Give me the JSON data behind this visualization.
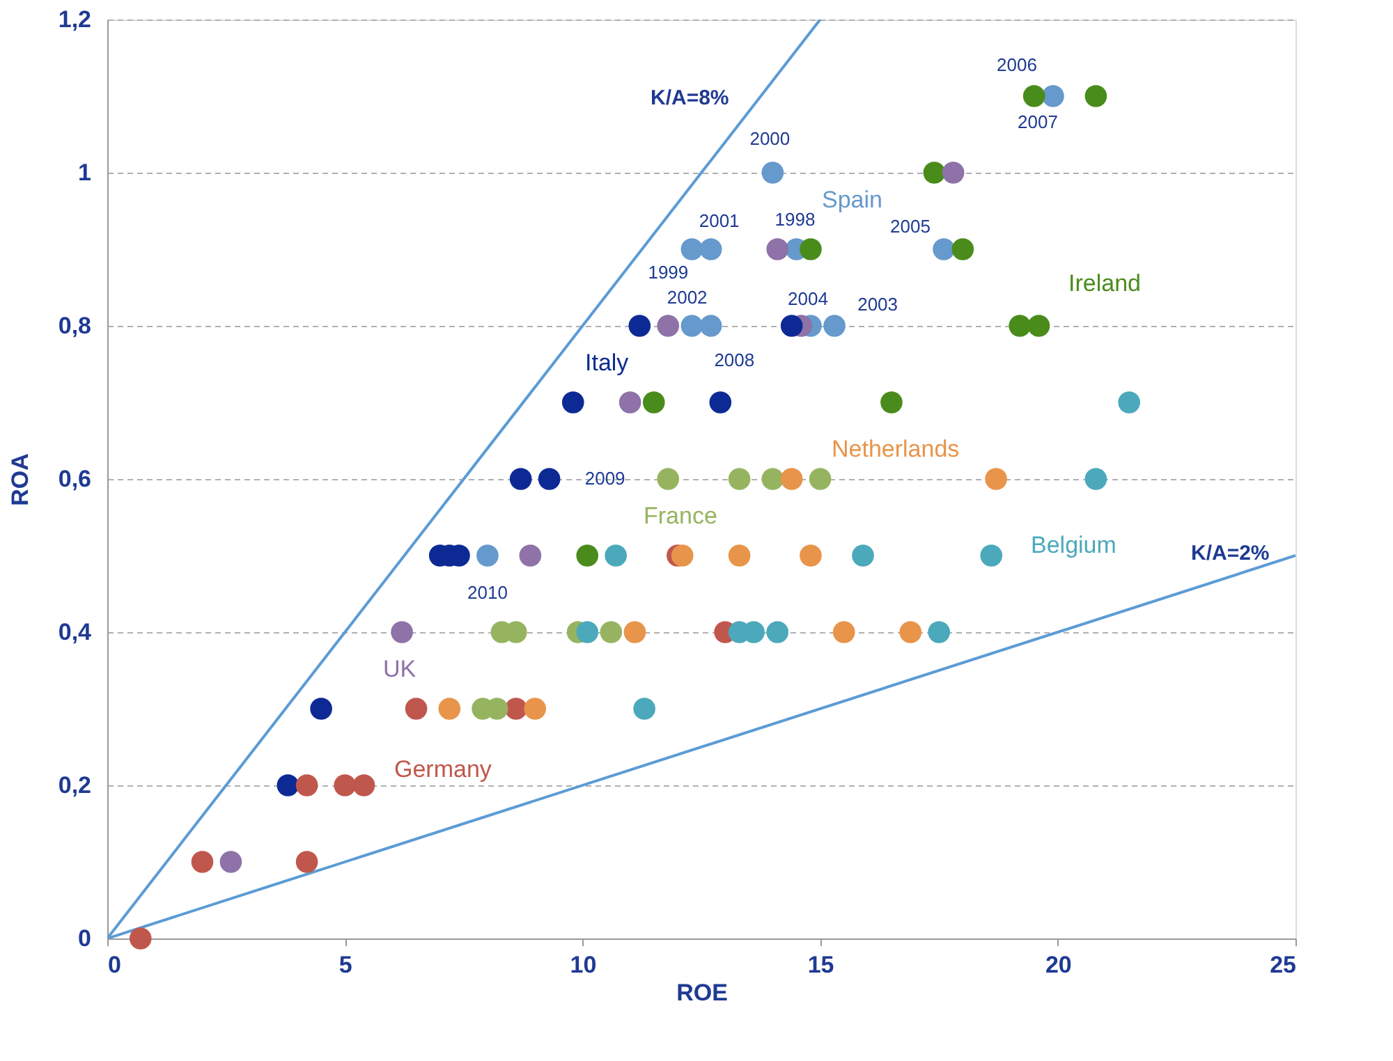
{
  "chart_data": {
    "type": "scatter",
    "xlabel": "ROE",
    "ylabel": "ROA",
    "xlim": [
      0,
      25
    ],
    "xticks": [
      0,
      5,
      10,
      15,
      20,
      25
    ],
    "ylim": [
      0,
      1.2
    ],
    "yticks": [
      0,
      {
        "value": 0.2,
        "label": "0,2"
      },
      {
        "value": 0.4,
        "label": "0,4"
      },
      {
        "value": 0.6,
        "label": "0,6"
      },
      {
        "value": 0.8,
        "label": "0,8"
      },
      1,
      {
        "value": 1.2,
        "label": "1,2"
      }
    ],
    "grid": "y",
    "marker": "circle",
    "series": [
      {
        "name": "Spain",
        "color": "#6699cc",
        "x": [
          19.9,
          14.0,
          12.3,
          12.7,
          14.5,
          17.6,
          12.3,
          12.7,
          14.8,
          15.3,
          8.0
        ],
        "values": [
          1.1,
          1.0,
          0.9,
          0.9,
          0.9,
          0.9,
          0.8,
          0.8,
          0.8,
          0.8,
          0.5
        ]
      },
      {
        "name": "Ireland",
        "color": "#4a8c1c",
        "x": [
          19.5,
          20.8,
          17.4,
          14.8,
          18.0,
          19.2,
          19.6,
          11.5,
          16.5,
          10.1
        ],
        "values": [
          1.1,
          1.1,
          1.0,
          0.9,
          0.9,
          0.8,
          0.8,
          0.7,
          0.7,
          0.5
        ]
      },
      {
        "name": "UK",
        "color": "#8e72a8",
        "x": [
          17.8,
          14.1,
          11.8,
          14.6,
          11.0,
          8.9,
          6.2,
          2.6
        ],
        "values": [
          1.0,
          0.9,
          0.8,
          0.8,
          0.7,
          0.5,
          0.4,
          0.1
        ]
      },
      {
        "name": "Italy",
        "color": "#0d2a94",
        "x": [
          11.2,
          14.4,
          9.8,
          12.9,
          8.7,
          9.3,
          7.0,
          7.2,
          7.4,
          4.5,
          3.8
        ],
        "values": [
          0.8,
          0.8,
          0.7,
          0.7,
          0.6,
          0.6,
          0.5,
          0.5,
          0.5,
          0.3,
          0.2
        ]
      },
      {
        "name": "Germany",
        "color": "#c0574d",
        "x": [
          12.0,
          13.0,
          6.5,
          8.6,
          4.2,
          5.0,
          5.4,
          2.0,
          4.2,
          0.7
        ],
        "values": [
          0.5,
          0.4,
          0.3,
          0.3,
          0.2,
          0.2,
          0.2,
          0.1,
          0.1,
          0.0
        ]
      },
      {
        "name": "France",
        "color": "#96b460",
        "x": [
          11.8,
          13.3,
          14.0,
          15.0,
          8.3,
          8.6,
          9.9,
          10.6,
          7.9,
          8.2
        ],
        "values": [
          0.6,
          0.6,
          0.6,
          0.6,
          0.4,
          0.4,
          0.4,
          0.4,
          0.3,
          0.3
        ]
      },
      {
        "name": "Netherlands",
        "color": "#e8944a",
        "x": [
          14.4,
          18.7,
          12.1,
          13.3,
          14.8,
          11.1,
          15.5,
          16.9,
          7.2,
          9.0
        ],
        "values": [
          0.6,
          0.6,
          0.5,
          0.5,
          0.5,
          0.4,
          0.4,
          0.4,
          0.3,
          0.3
        ]
      },
      {
        "name": "Belgium",
        "color": "#4ba9bb",
        "x": [
          21.5,
          20.8,
          10.7,
          15.9,
          18.6,
          10.1,
          13.3,
          13.6,
          14.1,
          17.5,
          11.3
        ],
        "values": [
          0.7,
          0.6,
          0.5,
          0.5,
          0.5,
          0.4,
          0.4,
          0.4,
          0.4,
          0.4,
          0.3
        ]
      },
      {
        "name": "K/A=8%",
        "type": "line",
        "marker": "none",
        "color": "#5b9bd5",
        "x": [
          0,
          15
        ],
        "values": [
          0,
          1.2
        ]
      },
      {
        "name": "K/A=2%",
        "type": "line",
        "marker": "none",
        "color": "#5b9bd5",
        "x": [
          0,
          25
        ],
        "values": [
          0,
          0.5
        ]
      }
    ],
    "annotations": [
      {
        "text": "2006",
        "x": 19.9,
        "y": 1.1
      },
      {
        "text": "2007",
        "x": 19.9,
        "y": 1.1
      },
      {
        "text": "2000",
        "x": 14.0,
        "y": 1.0
      },
      {
        "text": "2001",
        "x": 12.7,
        "y": 0.9
      },
      {
        "text": "1998",
        "x": 14.5,
        "y": 0.9
      },
      {
        "text": "2005",
        "x": 17.6,
        "y": 0.9
      },
      {
        "text": "1999",
        "x": 12.3,
        "y": 0.8
      },
      {
        "text": "2002",
        "x": 12.7,
        "y": 0.8
      },
      {
        "text": "2004",
        "x": 14.8,
        "y": 0.8
      },
      {
        "text": "2003",
        "x": 15.3,
        "y": 0.8
      },
      {
        "text": "2008",
        "x": 12.9,
        "y": 0.7
      },
      {
        "text": "2009",
        "x": 9.3,
        "y": 0.6
      },
      {
        "text": "2010",
        "x": 8.0,
        "y": 0.5
      }
    ]
  }
}
